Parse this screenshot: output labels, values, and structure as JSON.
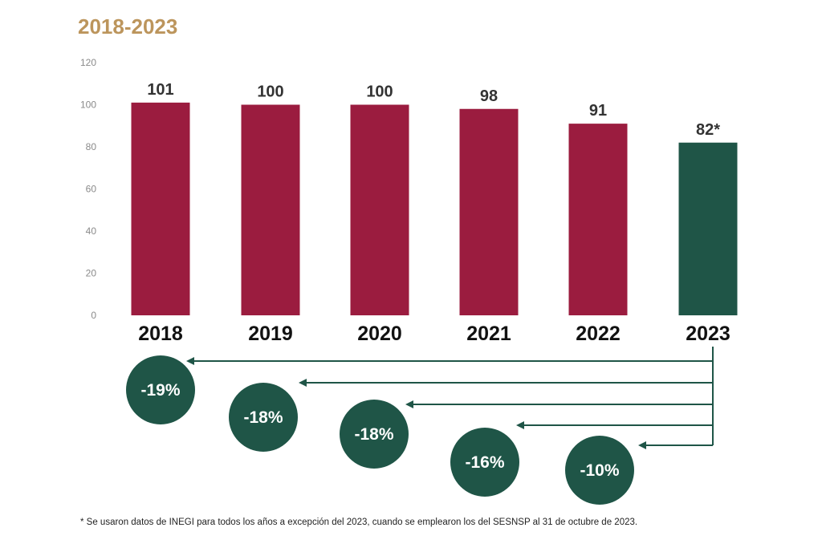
{
  "chart_data": {
    "type": "bar",
    "title": "2018-2023",
    "categories": [
      "2018",
      "2019",
      "2020",
      "2021",
      "2022",
      "2023"
    ],
    "values": [
      101,
      100,
      100,
      98,
      91,
      82
    ],
    "value_labels": [
      "101",
      "100",
      "100",
      "98",
      "91",
      "82*"
    ],
    "bar_colors": [
      "#9b1c3f",
      "#9b1c3f",
      "#9b1c3f",
      "#9b1c3f",
      "#9b1c3f",
      "#1f5547"
    ],
    "yticks": [
      "0",
      "20",
      "40",
      "60",
      "80",
      "100",
      "120"
    ],
    "ylim": [
      0,
      120
    ],
    "grid": false,
    "xlabel": "",
    "ylabel": "",
    "changes_vs_2023": [
      {
        "from": "2018",
        "label": "-19%"
      },
      {
        "from": "2019",
        "label": "-18%"
      },
      {
        "from": "2020",
        "label": "-18%"
      },
      {
        "from": "2021",
        "label": "-16%"
      },
      {
        "from": "2022",
        "label": "-10%"
      }
    ],
    "circle_color": "#1f5547"
  },
  "footnote": "* Se usaron datos de INEGI para todos los años a excepción del 2023, cuando se emplearon los del SESNSP al 31 de octubre de 2023."
}
